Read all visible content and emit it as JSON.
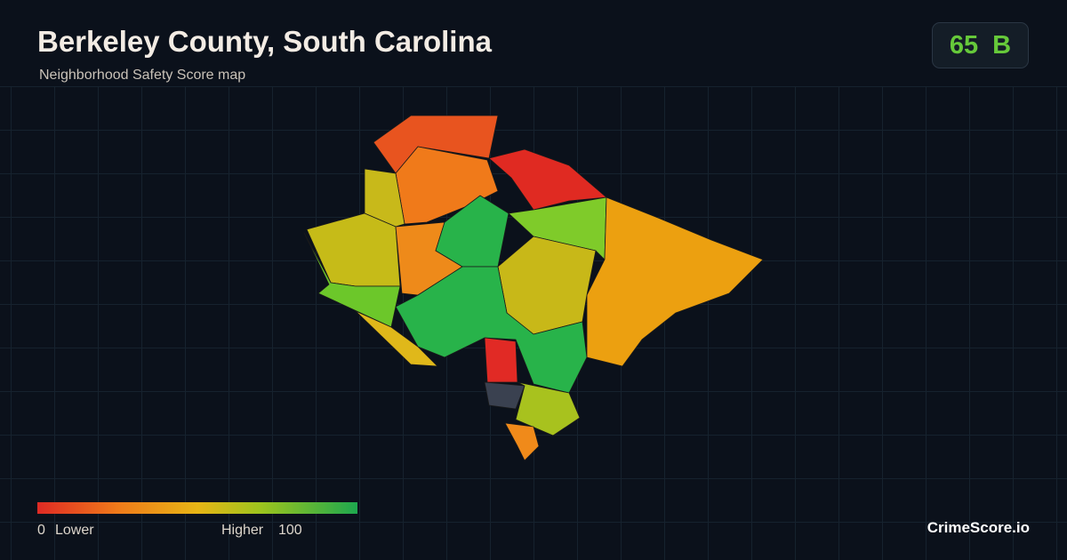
{
  "header": {
    "title": "Berkeley County, South Carolina",
    "subtitle": "Neighborhood Safety Score map"
  },
  "score": {
    "value": 65,
    "grade": "B"
  },
  "legend": {
    "min": 0,
    "min_label": "Lower",
    "max_label": "Higher",
    "max": 100
  },
  "brand": "CrimeScore.io"
}
